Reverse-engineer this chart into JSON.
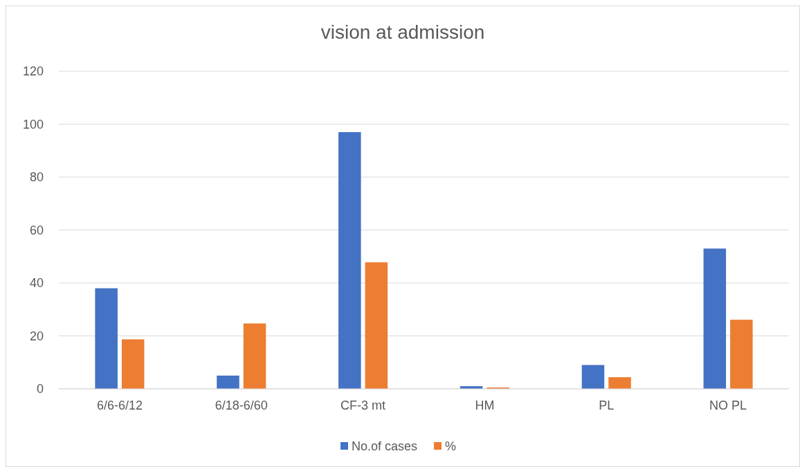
{
  "chart_data": {
    "type": "bar",
    "title": "vision at admission",
    "categories": [
      "6/6-6/12",
      "6/18-6/60",
      "CF-3 mt",
      "HM",
      "PL",
      "NO PL"
    ],
    "series": [
      {
        "name": "No.of cases",
        "color": "#4472c4",
        "values": [
          38,
          5,
          97,
          1,
          9,
          53
        ]
      },
      {
        "name": "%",
        "color": "#ed7d31",
        "values": [
          18.7,
          24.7,
          47.8,
          0.5,
          4.4,
          26.1
        ]
      }
    ],
    "ylim": [
      0,
      120
    ],
    "yticks": [
      0,
      20,
      40,
      60,
      80,
      100,
      120
    ],
    "grid": "y",
    "legend": "bottom"
  }
}
